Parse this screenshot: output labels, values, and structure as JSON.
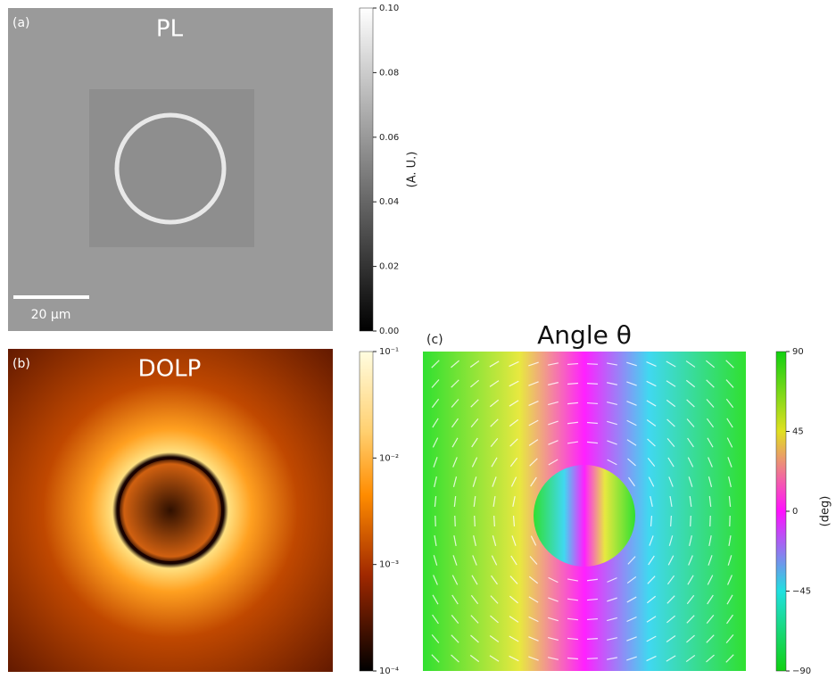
{
  "panels": [
    {
      "label": "(a)",
      "title": "PL",
      "scale_bar": "20 µm",
      "colorbar": {
        "label": "(A. U.)",
        "log": false,
        "lim": [
          0,
          0.1
        ],
        "ticks": [
          {
            "value": 0,
            "label": "0.00"
          },
          {
            "value": 0.02,
            "label": "0.02"
          },
          {
            "value": 0.04,
            "label": "0.04"
          },
          {
            "value": 0.06,
            "label": "0.06"
          },
          {
            "value": 0.08,
            "label": "0.08"
          },
          {
            "value": 0.1,
            "label": "0.10"
          }
        ]
      }
    },
    {
      "label": "(b)",
      "title": "DOLP",
      "colorbar": {
        "log": true,
        "lim": [
          0.0001,
          0.1
        ],
        "ticks": [
          {
            "value": 0.0001,
            "label": "10⁻⁴"
          },
          {
            "value": 0.001,
            "label": "10⁻³"
          },
          {
            "value": 0.01,
            "label": "10⁻²"
          },
          {
            "value": 0.1,
            "label": "10⁻¹"
          }
        ]
      }
    },
    {
      "label": "(c)",
      "title": "Angle θ",
      "colorbar": {
        "label": "(deg)",
        "log": false,
        "lim": [
          -90,
          90
        ],
        "ticks": [
          90,
          45,
          0,
          {
            "value": -45,
            "label": "−45"
          },
          {
            "value": -90,
            "label": "−90"
          }
        ]
      }
    }
  ]
}
